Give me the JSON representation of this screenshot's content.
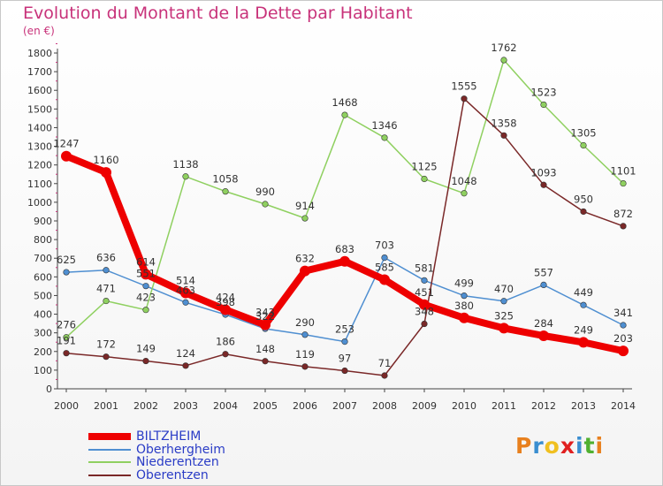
{
  "title": "Evolution du Montant de la Dette par Habitant",
  "unit": "(en €)",
  "logo_text": "Proxiti",
  "logo_colors": [
    "#e8801e",
    "#3a8ed0",
    "#f0c020",
    "#e02020",
    "#3a8ed0",
    "#50b030",
    "#e8801e"
  ],
  "chart_data": {
    "type": "line",
    "x": [
      2000,
      2001,
      2002,
      2003,
      2004,
      2005,
      2006,
      2007,
      2008,
      2009,
      2010,
      2011,
      2012,
      2013,
      2014
    ],
    "ylim": [
      0,
      1800
    ],
    "yticks": [
      0,
      100,
      200,
      300,
      400,
      500,
      600,
      700,
      800,
      900,
      1000,
      1100,
      1200,
      1300,
      1400,
      1500,
      1600,
      1700,
      1800
    ],
    "grid": false,
    "legend_position": "bottom-left",
    "series": [
      {
        "name": "BILTZHEIM",
        "color": "#ee0000",
        "width": 8,
        "values": [
          1247,
          1160,
          614,
          514,
          424,
          343,
          632,
          683,
          585,
          451,
          380,
          325,
          284,
          249,
          203
        ]
      },
      {
        "name": "Oberhergheim",
        "color": "#4f8fd1",
        "width": 1.5,
        "values": [
          625,
          636,
          551,
          463,
          398,
          322,
          290,
          253,
          703,
          581,
          499,
          470,
          557,
          449,
          341
        ]
      },
      {
        "name": "Niederentzen",
        "color": "#8fd060",
        "width": 1.5,
        "values": [
          276,
          471,
          423,
          1138,
          1058,
          990,
          914,
          1468,
          1346,
          1125,
          1048,
          1762,
          1523,
          1305,
          1101
        ]
      },
      {
        "name": "Oberentzen",
        "color": "#7a2828",
        "width": 1.5,
        "values": [
          191,
          172,
          149,
          124,
          186,
          148,
          119,
          97,
          71,
          348,
          1555,
          1358,
          1093,
          950,
          872
        ]
      }
    ]
  }
}
